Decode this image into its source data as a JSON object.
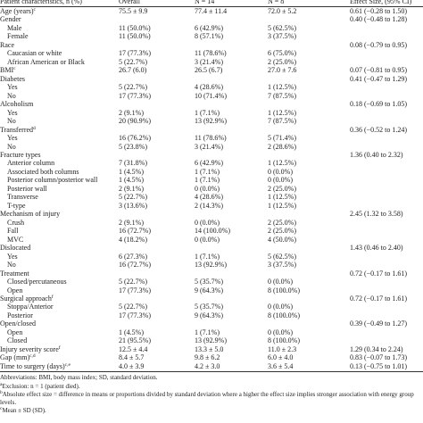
{
  "table": {
    "header": [
      "Patient characteristics, n (%)",
      "Overall",
      "N = 14",
      "N = 8",
      "Effect Size, (95% CI)"
    ],
    "rows": [
      {
        "label": "Age (years)",
        "note": "c",
        "values": [
          "75.5 ± 9.9",
          "77.4 ± 11.4",
          "72.0 ± 5.2"
        ],
        "effect": "0.61 (−0.28 to 1.50)"
      },
      {
        "label": "Gender",
        "effect": "0.40 (−0.48 to 1.28)",
        "items": [
          {
            "label": "Male",
            "values": [
              "11 (50.0%)",
              "6 (42.9%)",
              "5 (62.5%)"
            ]
          },
          {
            "label": "Female",
            "values": [
              "11 (50.0%)",
              "8 (57.1%)",
              "3 (37.5%)"
            ]
          }
        ]
      },
      {
        "label": "Race",
        "effect": "0.08 (−0.79 to 0.95)",
        "items": [
          {
            "label": "Caucasian or white",
            "values": [
              "17 (77.3%)",
              "11 (78.6%)",
              "6 (75.0%)"
            ]
          },
          {
            "label": "African American or Black",
            "values": [
              "5 (22.7%)",
              "3 (21.4%)",
              "2 (25.0%)"
            ]
          }
        ]
      },
      {
        "label": "BMI",
        "note": "c",
        "values": [
          "26.7 (6.0)",
          "26.5 (6.7)",
          "27.0 ± 7.6"
        ],
        "effect": "0.07 (−0.81 to 0.95)"
      },
      {
        "label": "Diabetes",
        "effect": "0.41 (−0.47 to 1.29)",
        "items": [
          {
            "label": "Yes",
            "values": [
              "5 (22.7%)",
              "4 (28.6%)",
              "1 (12.5%)"
            ]
          },
          {
            "label": "No",
            "values": [
              "17 (77.3%)",
              "10 (71.4%)",
              "7 (87.5%)"
            ]
          }
        ]
      },
      {
        "label": "Alcoholism",
        "effect": "0.18 (−0.69 to 1.05)",
        "items": [
          {
            "label": "Yes",
            "values": [
              "2 (9.1%)",
              "1 (7.1%)",
              "1 (12.5%)"
            ]
          },
          {
            "label": "No",
            "values": [
              "20 (90.9%)",
              "13 (92.9%)",
              "7 (87.5%)"
            ]
          }
        ]
      },
      {
        "label": "Transferred",
        "note": "d",
        "effect": "0.36 (−0.52 to 1.24)",
        "items": [
          {
            "label": "Yes",
            "values": [
              "16 (76.2%)",
              "11 (78.6%)",
              "5 (71.4%)"
            ]
          },
          {
            "label": "No",
            "values": [
              "5 (23.8%)",
              "3 (21.4%)",
              "2 (28.6%)"
            ]
          }
        ]
      },
      {
        "label": "Fracture types",
        "effect": "1.36 (0.40 to 2.32)",
        "items": [
          {
            "label": "Anterior column",
            "values": [
              "7 (31.8%)",
              "6 (42.9%)",
              "1 (12.5%)"
            ]
          },
          {
            "label": "Associated both columns",
            "values": [
              "1 (4.5%)",
              "1 (7.1%)",
              "0 (0.0%)"
            ]
          },
          {
            "label": "Posterior column/posterior wall",
            "values": [
              "1 (4.5%)",
              "1 (7.1%)",
              "0 (0.0%)"
            ]
          },
          {
            "label": "Posterior wall",
            "values": [
              "2 (9.1%)",
              "0 (0.0%)",
              "2 (25.0%)"
            ]
          },
          {
            "label": "Transverse",
            "values": [
              "5 (22.7%)",
              "4 (28.6%)",
              "1 (12.5%)"
            ]
          },
          {
            "label": "T-type",
            "values": [
              "3 (13.6%)",
              "2 (14.3%)",
              "1 (12.5%)"
            ]
          }
        ]
      },
      {
        "label": "Mechanism of injury",
        "effect": "2.45 (1.32 to 3.58)",
        "items": [
          {
            "label": "Crush",
            "values": [
              "2 (9.1%)",
              "0 (0.0%)",
              "2 (25.0%)"
            ]
          },
          {
            "label": "Fall",
            "values": [
              "16 (72.7%)",
              "14 (100.0%)",
              "2 (25.0%)"
            ]
          },
          {
            "label": "MVC",
            "values": [
              "4 (18.2%)",
              "0 (0.0%)",
              "4 (50.0%)"
            ]
          }
        ]
      },
      {
        "label": "Dislocated",
        "effect": "1.43 (0.46 to 2.40)",
        "items": [
          {
            "label": "Yes",
            "values": [
              "6 (27.3%)",
              "1 (7.1%)",
              "5 (62.5%)"
            ]
          },
          {
            "label": "No",
            "values": [
              "16 (72.7%)",
              "13 (92.9%)",
              "3 (37.5%)"
            ]
          }
        ]
      },
      {
        "label": "Treatment",
        "effect": "0.72 (−0.17 to 1.61)",
        "items": [
          {
            "label": "Closed/percutaneous",
            "values": [
              "5 (22.7%)",
              "5 (35.7%)",
              "0 (0.0%)"
            ]
          },
          {
            "label": "Open",
            "values": [
              "17 (77.3%)",
              "9 (64.3%)",
              "8 (100.0%)"
            ]
          }
        ]
      },
      {
        "label": "Surgical approach",
        "note": "f",
        "effect": "0.72 (−0.17 to 1.61)",
        "items": [
          {
            "label": "Stoppa/Anterior",
            "values": [
              "5 (22.7%)",
              "5 (35.7%)",
              "0 (0.0%)"
            ]
          },
          {
            "label": "Posterior",
            "values": [
              "17 (77.3%)",
              "9 (64.3%)",
              "8 (100.0%)"
            ]
          }
        ]
      },
      {
        "label": "Open/closed",
        "effect": "0.39 (−0.49 to 1.27)",
        "items": [
          {
            "label": "Open",
            "values": [
              "1 (4.5%)",
              "1 (7.1%)",
              "0 (0.0%)"
            ]
          },
          {
            "label": "Closed",
            "values": [
              "21 (95.5%)",
              "13 (92.9%)",
              "8 (100.0%)"
            ]
          }
        ]
      },
      {
        "label": "Injury severity score",
        "note": "f",
        "values": [
          "12.5 ± 4.4",
          "13.3 ± 5.0",
          "11.0 ± 2.3"
        ],
        "effect": "1.29 (0.34 to 2.24)"
      },
      {
        "label": "Gap (mm)",
        "note": "c,d",
        "values": [
          "8.4 ± 5.7",
          "9.8 ± 6.2",
          "6.0 ± 4.0"
        ],
        "effect": "0.83 (−0.07 to 1.73)"
      },
      {
        "label": "Time to surgery (days)",
        "note": "c,e",
        "values": [
          "4.0 ± 3.9",
          "4.2 ± 3.0",
          "3.6 ± 5.4"
        ],
        "effect": "0.13 (−0.75 to 1.01)"
      }
    ],
    "footnotes": [
      {
        "text": "Abbreviations: BMI, body mass index; SD, standard deviation."
      },
      {
        "mark": "a",
        "text": "Exclusion: n = 1 (patient died)."
      },
      {
        "mark": "b",
        "text": "Absolute effect size = difference in means or proportions divided by standard deviation where a higher the effect size implies stronger association with energy group levels."
      },
      {
        "mark": "c",
        "text": "Mean ± SD (SD)."
      }
    ]
  }
}
